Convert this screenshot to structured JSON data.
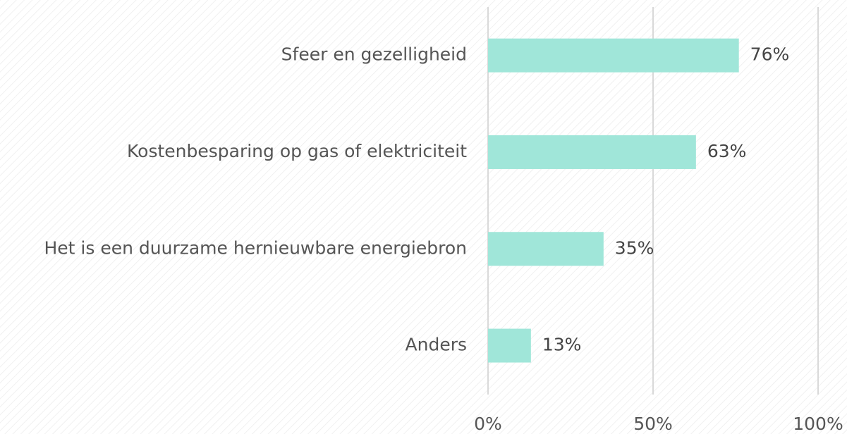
{
  "chart_data": {
    "type": "bar",
    "orientation": "horizontal",
    "categories": [
      "Sfeer en gezelligheid",
      "Kostenbesparing op gas of elektriciteit",
      "Het is een duurzame hernieuwbare energiebron",
      "Anders"
    ],
    "values": [
      76,
      63,
      35,
      13
    ],
    "value_labels": [
      "76%",
      "63%",
      "35%",
      "13%"
    ],
    "color": "#a0e6d9",
    "xlim": [
      0,
      100
    ],
    "xticks": [
      {
        "value": 0,
        "label": "0%"
      },
      {
        "value": 50,
        "label": "50%"
      },
      {
        "value": 100,
        "label": "100%"
      }
    ],
    "grid": true
  }
}
